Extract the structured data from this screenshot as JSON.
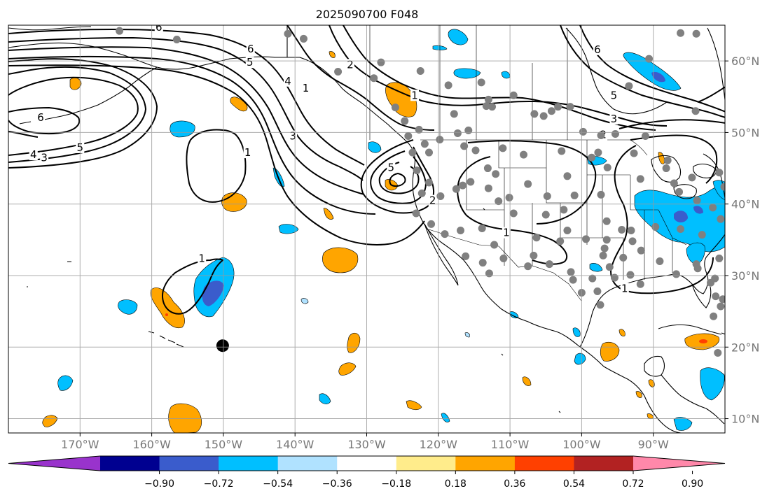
{
  "title": "2025090700 F048",
  "map": {
    "projection": "PlateCarree",
    "lon_range": [
      -180,
      -80
    ],
    "lat_range": [
      8,
      65
    ],
    "lon_ticks": [
      {
        "value": -170,
        "label": "170°W"
      },
      {
        "value": -160,
        "label": "160°W"
      },
      {
        "value": -150,
        "label": "150°W"
      },
      {
        "value": -140,
        "label": "140°W"
      },
      {
        "value": -130,
        "label": "130°W"
      },
      {
        "value": -120,
        "label": "120°W"
      },
      {
        "value": -110,
        "label": "110°W"
      },
      {
        "value": -100,
        "label": "100°W"
      },
      {
        "value": -90,
        "label": "90°W"
      }
    ],
    "lat_ticks": [
      {
        "value": 10,
        "label": "10°N"
      },
      {
        "value": 20,
        "label": "20°N"
      },
      {
        "value": 30,
        "label": "30°N"
      },
      {
        "value": 40,
        "label": "40°N"
      },
      {
        "value": 50,
        "label": "50°N"
      },
      {
        "value": 60,
        "label": "60°N"
      }
    ],
    "grid": true,
    "marker": {
      "lon": -150.1,
      "lat": 20.2,
      "color": "#000000"
    },
    "station_color": "#808080",
    "stations": [
      [
        -164.5,
        64.2
      ],
      [
        -156.5,
        63.0
      ],
      [
        -141,
        63.8
      ],
      [
        -138.8,
        63.1
      ],
      [
        -134,
        58.5
      ],
      [
        -129,
        57.6
      ],
      [
        -128,
        59.8
      ],
      [
        -122.5,
        58.6
      ],
      [
        -118.6,
        56.6
      ],
      [
        -114,
        57.0
      ],
      [
        -113,
        54.6
      ],
      [
        -113.3,
        53.7
      ],
      [
        -112.5,
        53.6
      ],
      [
        -109.5,
        55.2
      ],
      [
        -106.6,
        52.6
      ],
      [
        -105.3,
        52.3
      ],
      [
        -104.2,
        53.0
      ],
      [
        -103.3,
        53.6
      ],
      [
        -101.6,
        53.6
      ],
      [
        -99.8,
        50.1
      ],
      [
        -97.3,
        49.6
      ],
      [
        -95.3,
        49.8
      ],
      [
        -91.1,
        49.5
      ],
      [
        -93.4,
        56.5
      ],
      [
        -84.0,
        63.8
      ],
      [
        -84.1,
        53.0
      ],
      [
        -90.6,
        60.3
      ],
      [
        -86.2,
        63.9
      ],
      [
        -124.2,
        49.5
      ],
      [
        -126,
        53.5
      ],
      [
        -117.8,
        52.6
      ],
      [
        -121.9,
        48.4
      ],
      [
        -123.6,
        47.2
      ],
      [
        -121.3,
        47.2
      ],
      [
        -124.7,
        51.6
      ],
      [
        -122.7,
        50.4
      ],
      [
        -119.8,
        49.0
      ],
      [
        -117.3,
        49.9
      ],
      [
        -116.4,
        48.1
      ],
      [
        -115.8,
        50.3
      ],
      [
        -114.8,
        47.5
      ],
      [
        -113.1,
        45.0
      ],
      [
        -111.0,
        47.8
      ],
      [
        -108.1,
        46.9
      ],
      [
        -102.8,
        47.4
      ],
      [
        -98.6,
        46.5
      ],
      [
        -97.7,
        47.2
      ],
      [
        -96.4,
        45.1
      ],
      [
        -91.8,
        43.5
      ],
      [
        -92.7,
        47.1
      ],
      [
        -88.2,
        45.0
      ],
      [
        -88.0,
        46.1
      ],
      [
        -86.4,
        41.7
      ],
      [
        -84.6,
        43.7
      ],
      [
        -80.8,
        44.4
      ],
      [
        -80.1,
        42.4
      ],
      [
        -83.9,
        40.5
      ],
      [
        -81.7,
        39.5
      ],
      [
        -80.6,
        37.9
      ],
      [
        -83.2,
        35.7
      ],
      [
        -86.2,
        36.5
      ],
      [
        -89.7,
        36.8
      ],
      [
        -92.9,
        34.8
      ],
      [
        -94.4,
        36.4
      ],
      [
        -96.5,
        37.6
      ],
      [
        -97.3,
        41.3
      ],
      [
        -101.0,
        41.2
      ],
      [
        -102.0,
        43.9
      ],
      [
        -104.8,
        41.1
      ],
      [
        -107.5,
        42.8
      ],
      [
        -110.1,
        40.9
      ],
      [
        -111.6,
        40.4
      ],
      [
        -113.0,
        42.2
      ],
      [
        -115.5,
        43.1
      ],
      [
        -117.5,
        42.1
      ],
      [
        -119.7,
        41.1
      ],
      [
        -122.3,
        41.5
      ],
      [
        -121.3,
        43.0
      ],
      [
        -123.0,
        44.7
      ],
      [
        -123.1,
        38.7
      ],
      [
        -121.0,
        37.2
      ],
      [
        -119.1,
        35.8
      ],
      [
        -116.9,
        36.3
      ],
      [
        -113.9,
        36.6
      ],
      [
        -112.2,
        34.3
      ],
      [
        -110.9,
        32.4
      ],
      [
        -106.3,
        35.3
      ],
      [
        -103.0,
        34.8
      ],
      [
        -99.4,
        35.1
      ],
      [
        -97.0,
        32.8
      ],
      [
        -94.2,
        32.5
      ],
      [
        -91.7,
        33.5
      ],
      [
        -89.1,
        32.0
      ],
      [
        -86.8,
        30.2
      ],
      [
        -83.8,
        31.0
      ],
      [
        -80.8,
        32.4
      ],
      [
        -81.4,
        29.6
      ],
      [
        -81.3,
        27.1
      ],
      [
        -80.6,
        25.7
      ],
      [
        -84.0,
        31.6
      ],
      [
        -93.2,
        30.1
      ],
      [
        -95.4,
        29.7
      ],
      [
        -98.5,
        29.6
      ],
      [
        -101.2,
        29.4
      ],
      [
        -104.5,
        31.6
      ],
      [
        -106.7,
        32.8
      ],
      [
        -107.5,
        31.3
      ],
      [
        -113.8,
        31.8
      ],
      [
        -116.2,
        32.7
      ],
      [
        -112.9,
        30.3
      ],
      [
        -116.6,
        42.6
      ],
      [
        -102.5,
        39.2
      ],
      [
        -96.8,
        33.8
      ],
      [
        -96.5,
        35.0
      ],
      [
        -93.1,
        36.3
      ],
      [
        -96.1,
        31.2
      ],
      [
        -97.8,
        27.8
      ],
      [
        -100.0,
        27.6
      ],
      [
        -101.5,
        30.5
      ],
      [
        -97.4,
        25.9
      ],
      [
        -80.3,
        26.7
      ],
      [
        -82.0,
        29.0
      ],
      [
        -81.6,
        24.3
      ],
      [
        -81.0,
        19.2
      ],
      [
        -102.0,
        36.3
      ],
      [
        -105.0,
        38.5
      ],
      [
        -109.5,
        38.7
      ],
      [
        -112.0,
        44.2
      ],
      [
        -91.8,
        28.8
      ],
      [
        -87.1,
        42.9
      ]
    ],
    "colorbar": {
      "boundaries": [
        "−0.90",
        "−0.72",
        "−0.54",
        "−0.36",
        "−0.18",
        "0.18",
        "0.36",
        "0.54",
        "0.72",
        "0.90"
      ],
      "colors": [
        "#9933CC",
        "#000090",
        "#3A5CCC",
        "#00BFFF",
        "#B0E2FF",
        "#FFFFFF",
        "#FFEC8B",
        "#FFA500",
        "#FF4000",
        "#B22222",
        "#FF88AA"
      ]
    },
    "contour_labels": [
      {
        "text": "6",
        "lon": -159.0,
        "lat": 64.5
      },
      {
        "text": "6",
        "lon": -146.2,
        "lat": 61.5
      },
      {
        "text": "5",
        "lon": -146.3,
        "lat": 59.6
      },
      {
        "text": "4",
        "lon": -141.0,
        "lat": 57.0
      },
      {
        "text": "3",
        "lon": -140.3,
        "lat": 49.3
      },
      {
        "text": "2",
        "lon": -132.3,
        "lat": 59.3
      },
      {
        "text": "1",
        "lon": -138.5,
        "lat": 56.0
      },
      {
        "text": "1",
        "lon": -123.3,
        "lat": 55.0
      },
      {
        "text": "6",
        "lon": -175.5,
        "lat": 51.9
      },
      {
        "text": "5",
        "lon": -170.0,
        "lat": 47.7
      },
      {
        "text": "4",
        "lon": -176.5,
        "lat": 46.7
      },
      {
        "text": "3",
        "lon": -175.0,
        "lat": 46.3
      },
      {
        "text": "1",
        "lon": -146.6,
        "lat": 47.0
      },
      {
        "text": "1",
        "lon": -153.0,
        "lat": 32.2
      },
      {
        "text": "5",
        "lon": -126.6,
        "lat": 44.9
      },
      {
        "text": "2",
        "lon": -120.8,
        "lat": 40.3
      },
      {
        "text": "1",
        "lon": -110.5,
        "lat": 35.8
      },
      {
        "text": "3",
        "lon": -95.5,
        "lat": 51.7
      },
      {
        "text": "2",
        "lon": -97.0,
        "lat": 49.5
      },
      {
        "text": "5",
        "lon": -95.5,
        "lat": 55.0
      },
      {
        "text": "6",
        "lon": -97.8,
        "lat": 61.4
      },
      {
        "text": "1",
        "lon": -94.0,
        "lat": 28.0
      }
    ]
  }
}
